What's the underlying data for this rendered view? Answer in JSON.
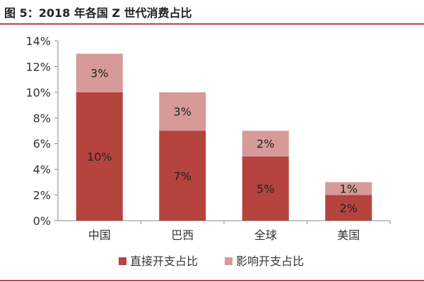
{
  "figure_title": "图 5：2018 年各国 Z 世代消费占比",
  "colors": {
    "direct": "#b5443e",
    "influence": "#d69a98",
    "accent_rule": "#b5493f",
    "axis": "#888888",
    "text": "#333333"
  },
  "chart_data": {
    "type": "bar",
    "stacked": true,
    "categories": [
      "中国",
      "巴西",
      "全球",
      "美国"
    ],
    "series": [
      {
        "name": "直接开支占比",
        "values": [
          10,
          7,
          5,
          2
        ],
        "labels": [
          "10%",
          "7%",
          "5%",
          "2%"
        ]
      },
      {
        "name": "影响开支占比",
        "values": [
          3,
          3,
          2,
          1
        ],
        "labels": [
          "3%",
          "3%",
          "2%",
          "1%"
        ]
      }
    ],
    "ylim": [
      0,
      14
    ],
    "yticks": [
      "0%",
      "2%",
      "4%",
      "6%",
      "8%",
      "10%",
      "12%",
      "14%"
    ],
    "grid": false,
    "legend": "bottom"
  }
}
